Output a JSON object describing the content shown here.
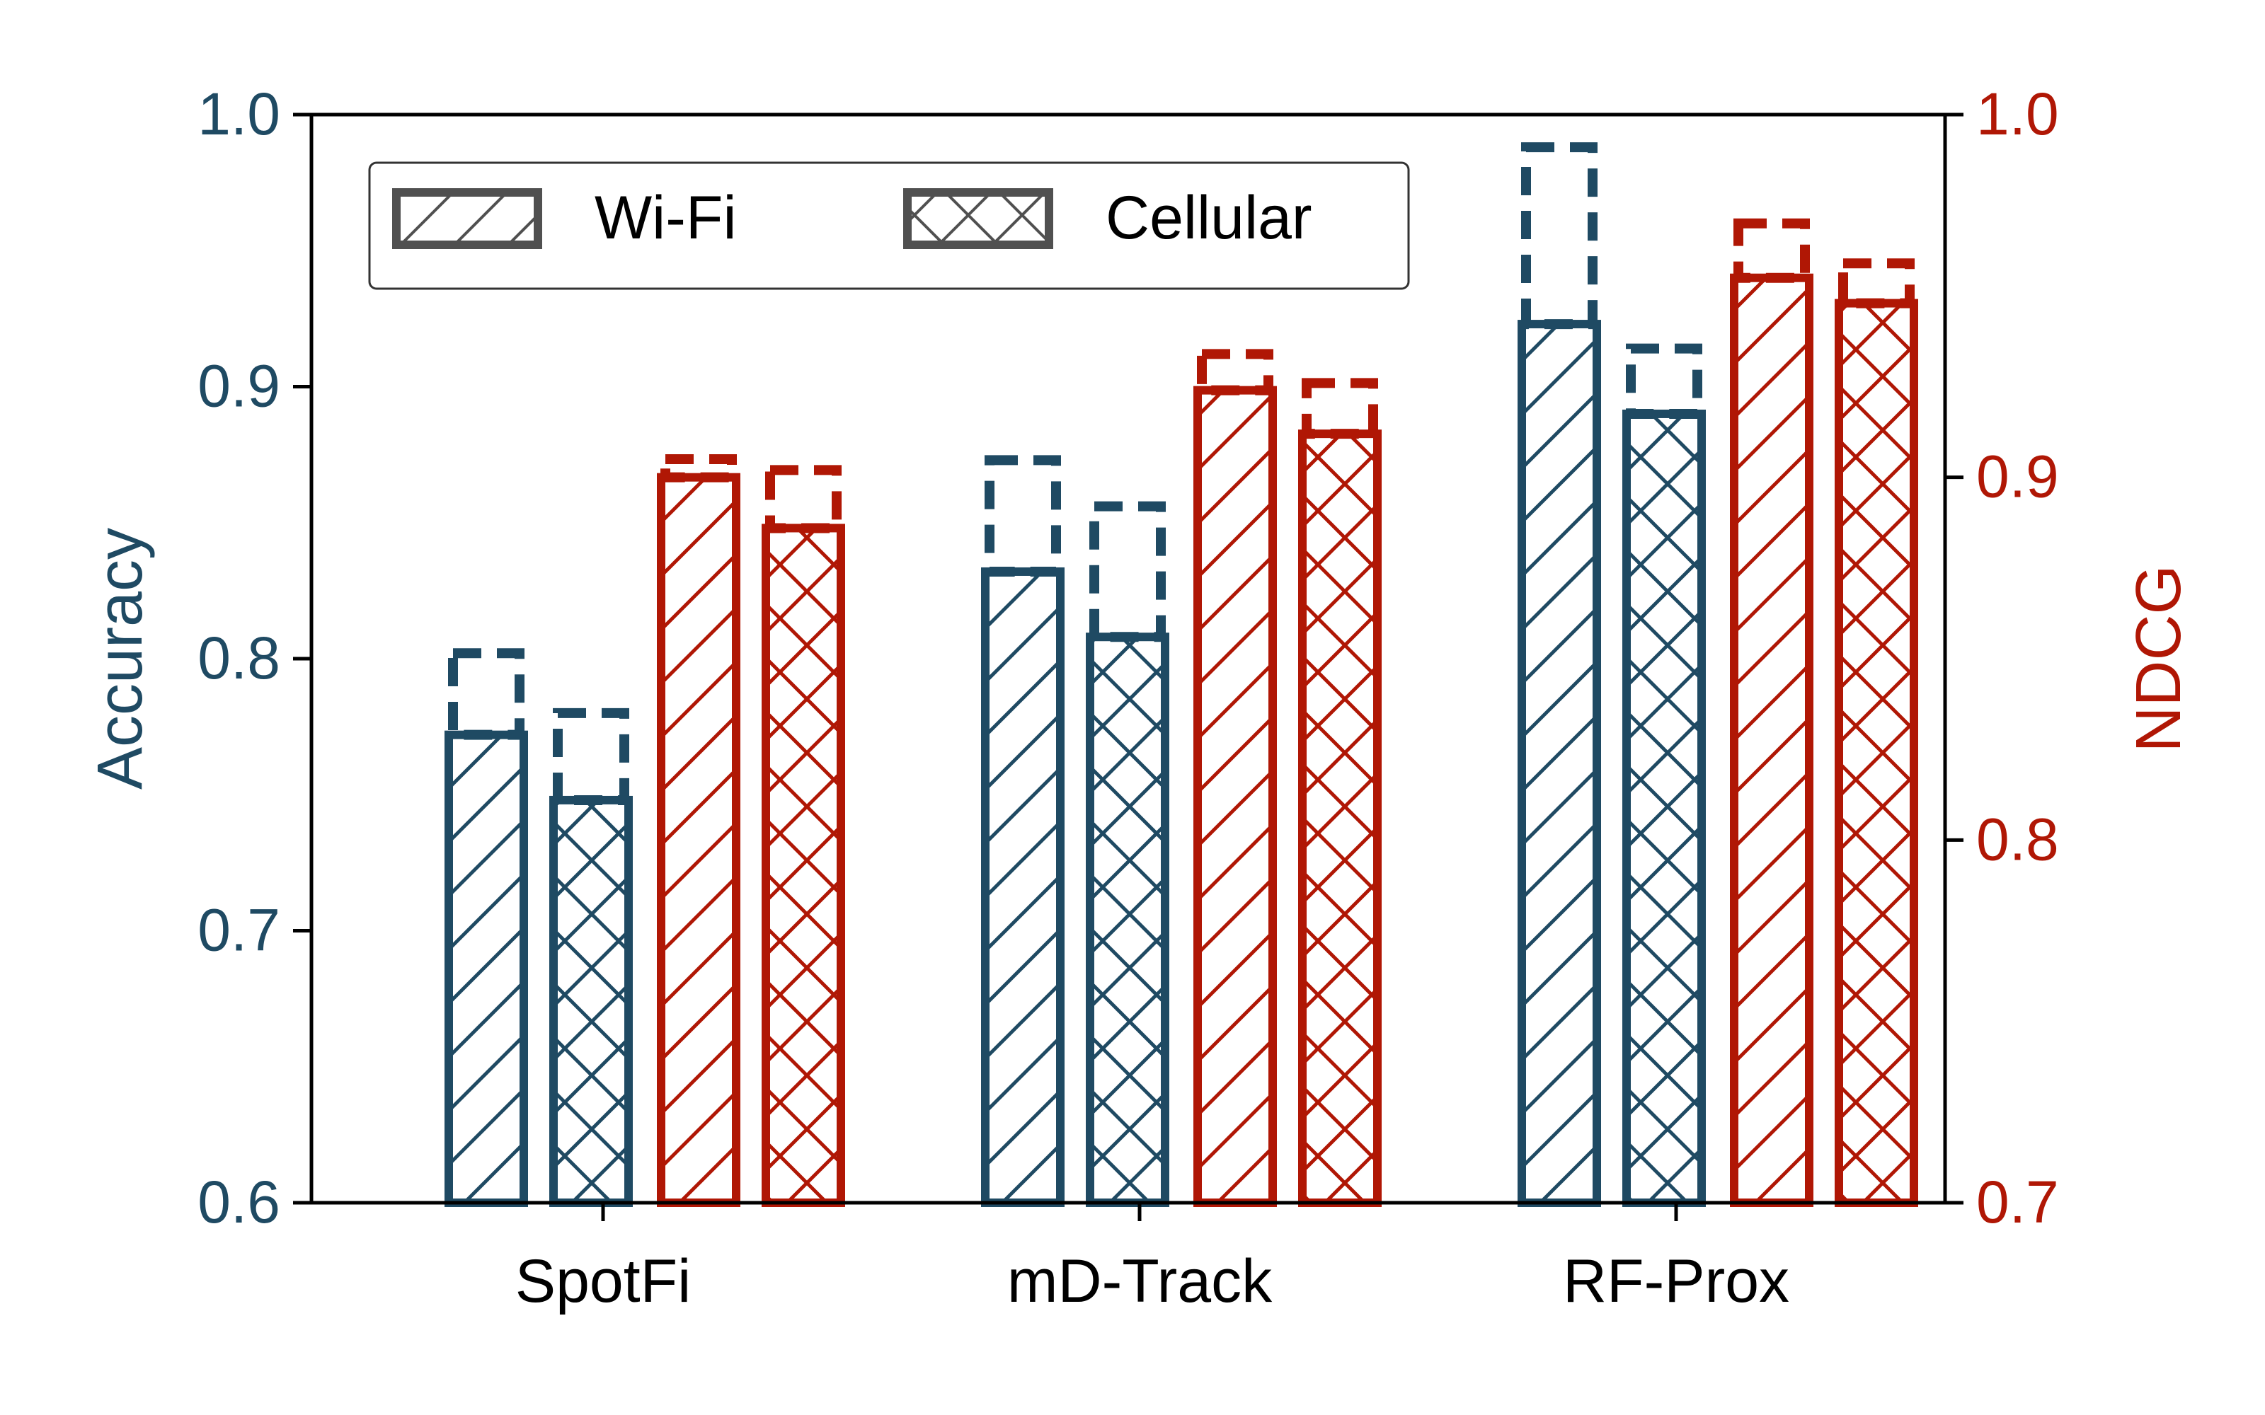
{
  "chart_data": {
    "type": "bar",
    "categories": [
      "SpotFi",
      "mD-Track",
      "RF-Prox"
    ],
    "series": [
      {
        "name": "Wi-Fi",
        "axis": "left",
        "pattern": "diagonal",
        "color": "#1f4a63",
        "values": [
          0.772,
          0.832,
          0.923
        ],
        "extension_top": [
          0.802,
          0.873,
          0.988
        ]
      },
      {
        "name": "Cellular",
        "axis": "left",
        "pattern": "crosshatch",
        "color": "#1f4a63",
        "values": [
          0.748,
          0.808,
          0.89
        ],
        "extension_top": [
          0.78,
          0.856,
          0.914
        ]
      },
      {
        "name": "Wi-Fi",
        "axis": "right",
        "pattern": "diagonal",
        "color": "#b01705",
        "values": [
          0.9,
          0.924,
          0.955
        ],
        "extension_top": [
          0.905,
          0.934,
          0.97
        ]
      },
      {
        "name": "Cellular",
        "axis": "right",
        "pattern": "crosshatch",
        "color": "#b01705",
        "values": [
          0.886,
          0.912,
          0.948
        ],
        "extension_top": [
          0.902,
          0.926,
          0.959
        ]
      }
    ],
    "yaxis_left": {
      "label": "Accuracy",
      "range": [
        0.6,
        1.0
      ],
      "ticks": [
        "0.6",
        "0.7",
        "0.8",
        "0.9",
        "1.0"
      ],
      "color": "#1f4a63"
    },
    "yaxis_right": {
      "label": "NDCG",
      "range": [
        0.7,
        1.0
      ],
      "ticks": [
        "0.7",
        "0.8",
        "0.9",
        "1.0"
      ],
      "color": "#b01705"
    },
    "legend": {
      "placement": "top-left",
      "entries": [
        {
          "label": "Wi-Fi",
          "pattern": "diagonal"
        },
        {
          "label": "Cellular",
          "pattern": "crosshatch"
        }
      ],
      "color": "#505050"
    },
    "grid": false
  }
}
